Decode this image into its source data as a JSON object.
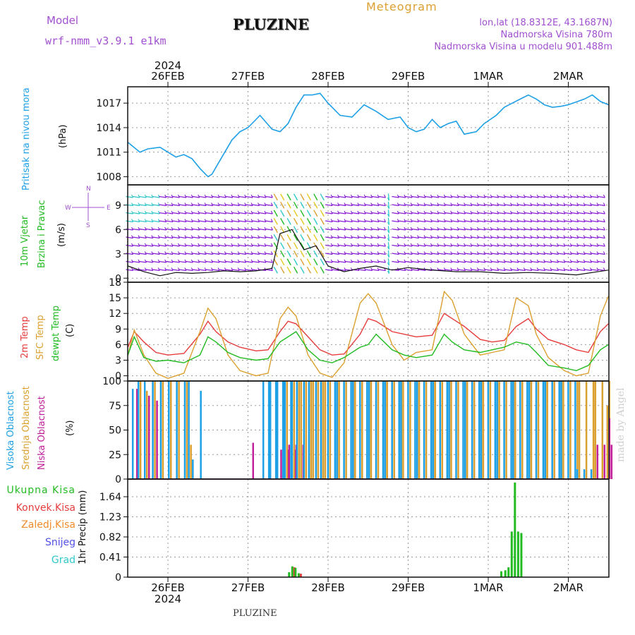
{
  "header": {
    "model_label": "Model",
    "model_name": "wrf-nmm_v3.9.1  e1km",
    "station": "PLUZINE",
    "meteogram": "Meteogram",
    "coords": "lon,lat (18.8312E, 43.1687N)",
    "altitude": "Nadmorska Visina 780m",
    "model_altitude": "Nadmorska Visina u modelu 901.488m",
    "footer_station": "PLUZINE",
    "watermark": "made by Angel"
  },
  "dates": {
    "year": "2024",
    "labels": [
      "26FEB",
      "27FEB",
      "28FEB",
      "29FEB",
      "1MAR",
      "2MAR"
    ]
  },
  "colors": {
    "pressure": "#1ea0e6",
    "temp2m": "#e63c3c",
    "sfc": "#dca030",
    "dewpt": "#22bb22",
    "high_cloud": "#1ea0e6",
    "mid_cloud": "#dca030",
    "low_cloud": "#c0209a",
    "total_precip": "#22bb22",
    "conv_precip": "#e63c3c",
    "frz_precip": "#f08c28",
    "snow": "#5050e6",
    "hail": "#30c8c8",
    "wind_purple": "#8a1fd6"
  },
  "labels": {
    "pressure": "Pritisak na nivou mora",
    "pressure_unit": "(hPa)",
    "wind1": "10m Vjetar",
    "wind2": "Brzina i Pravac",
    "wind_unit": "(m/s)",
    "compass_w": "W",
    "compass_e": "E",
    "compass_n": "N",
    "compass_s": "S",
    "temp_2m": "2m Temp",
    "temp_sfc": "SFC Temp",
    "temp_dew": "dewpt Temp",
    "temp_unit": "(C)",
    "cloud_high": "Visoka Oblacnost",
    "cloud_mid": "Srednja Oblacnost",
    "cloud_low": "Niska Oblacnost",
    "cloud_unit": "(%)",
    "precip_total": "Ukupna Kisa",
    "precip_conv": "Konvek.Kisa",
    "precip_frz": "Zaledj.Kisa",
    "precip_snow": "Snijeg",
    "precip_hail": "Grad",
    "precip_unit": "1hr Precip (mm)"
  },
  "chart_data": [
    {
      "type": "line",
      "panel": "pressure",
      "ylabel": "(hPa)",
      "yticks": [
        "1008",
        "1011",
        "1014",
        "1017"
      ],
      "ylim": [
        1007,
        1019
      ],
      "x_days": [
        -0.5,
        -0.35,
        -0.25,
        -0.1,
        0.0,
        0.1,
        0.2,
        0.3,
        0.4,
        0.5,
        0.55,
        0.65,
        0.8,
        0.9,
        1.0,
        1.15,
        1.3,
        1.4,
        1.5,
        1.6,
        1.7,
        1.8,
        1.9,
        2.0,
        2.15,
        2.3,
        2.45,
        2.6,
        2.75,
        2.9,
        3.0,
        3.1,
        3.2,
        3.3,
        3.4,
        3.5,
        3.6,
        3.7,
        3.85,
        3.95,
        4.1,
        4.2,
        4.3,
        4.4,
        4.5,
        4.6,
        4.7,
        4.8,
        4.9,
        5.0,
        5.2,
        5.3,
        5.4,
        5.5
      ],
      "series": [
        {
          "values": [
            1012.2,
            1011.0,
            1011.4,
            1011.6,
            1011.0,
            1010.4,
            1010.7,
            1010.2,
            1009.0,
            1008.0,
            1008.3,
            1010.0,
            1012.5,
            1013.5,
            1014.0,
            1015.5,
            1013.8,
            1013.5,
            1014.5,
            1016.5,
            1018.0,
            1018.0,
            1018.2,
            1017.0,
            1015.5,
            1015.3,
            1016.8,
            1016.0,
            1015.0,
            1015.3,
            1014.0,
            1013.5,
            1013.8,
            1015.0,
            1014.0,
            1014.5,
            1014.8,
            1013.2,
            1013.5,
            1014.5,
            1015.5,
            1016.5,
            1017.0,
            1017.5,
            1018.0,
            1017.5,
            1016.8,
            1016.5,
            1016.6,
            1016.8,
            1017.5,
            1018.0,
            1017.2,
            1016.8
          ]
        }
      ]
    },
    {
      "type": "line",
      "panel": "wind",
      "ylabel": "(m/s)",
      "yticks": [
        "0",
        "3",
        "6",
        "9"
      ],
      "ylim": [
        -0.5,
        11.5
      ],
      "x_days": [
        -0.5,
        -0.3,
        -0.1,
        0.1,
        0.3,
        0.5,
        0.7,
        0.9,
        1.1,
        1.3,
        1.4,
        1.55,
        1.7,
        1.85,
        2.0,
        2.2,
        2.4,
        2.6,
        2.8,
        3.0,
        3.3,
        3.6,
        3.9,
        4.2,
        4.5,
        4.8,
        5.1,
        5.5
      ],
      "series": [
        {
          "values": [
            1.5,
            0.8,
            0.3,
            0.7,
            0.6,
            0.7,
            0.9,
            0.8,
            0.9,
            1.2,
            5.5,
            6.0,
            3.5,
            4.0,
            1.5,
            0.8,
            1.2,
            1.5,
            1.0,
            1.3,
            1.0,
            0.8,
            0.8,
            0.6,
            0.7,
            0.6,
            0.4,
            1.0
          ]
        }
      ]
    },
    {
      "type": "line",
      "panel": "temperature",
      "ylabel": "(C)",
      "yticks": [
        "0",
        "3",
        "6",
        "9",
        "12",
        "15",
        "18"
      ],
      "ylim": [
        -1,
        18
      ],
      "x_days": [
        -0.5,
        -0.42,
        -0.3,
        -0.15,
        0.0,
        0.2,
        0.4,
        0.5,
        0.6,
        0.75,
        0.9,
        1.1,
        1.25,
        1.4,
        1.5,
        1.6,
        1.75,
        1.9,
        2.05,
        2.2,
        2.4,
        2.5,
        2.6,
        2.8,
        2.95,
        3.1,
        3.3,
        3.45,
        3.55,
        3.7,
        3.9,
        4.05,
        4.2,
        4.35,
        4.5,
        4.6,
        4.75,
        4.95,
        5.1,
        5.25,
        5.4,
        5.5
      ],
      "series": [
        {
          "name": "2m Temp",
          "color_key": "temp2m",
          "values": [
            5.5,
            8.5,
            6.5,
            4.5,
            4.0,
            4.3,
            8.0,
            10.5,
            8.5,
            6.5,
            5.5,
            4.8,
            5.0,
            8.5,
            10.5,
            10.0,
            7.5,
            5.0,
            4.0,
            4.2,
            8.0,
            11.0,
            10.5,
            8.5,
            8.0,
            7.5,
            7.8,
            12.0,
            11.0,
            9.5,
            7.0,
            6.5,
            6.8,
            9.5,
            11.0,
            9.0,
            7.0,
            6.0,
            5.0,
            4.5,
            8.5,
            10.0
          ]
        },
        {
          "name": "SFC Temp",
          "color_key": "sfc",
          "values": [
            4.0,
            8.8,
            4.0,
            0.5,
            -0.5,
            0.5,
            8.5,
            13.0,
            11.0,
            4.0,
            1.0,
            0.0,
            0.5,
            11.0,
            13.2,
            11.5,
            4.0,
            0.5,
            -0.3,
            2.5,
            14.0,
            15.8,
            14.0,
            6.0,
            3.0,
            4.5,
            5.0,
            16.2,
            14.5,
            8.0,
            4.0,
            4.5,
            5.0,
            15.0,
            13.5,
            8.0,
            3.5,
            1.0,
            0.0,
            0.5,
            11.5,
            15.3
          ]
        },
        {
          "name": "dewpt Temp",
          "color_key": "dewpt",
          "values": [
            4.0,
            7.5,
            3.5,
            2.8,
            3.0,
            2.5,
            4.0,
            7.5,
            6.5,
            4.5,
            3.5,
            3.0,
            3.3,
            6.5,
            7.5,
            8.5,
            5.0,
            3.0,
            2.5,
            3.5,
            5.5,
            6.0,
            8.0,
            5.0,
            4.0,
            3.5,
            4.0,
            8.0,
            6.5,
            5.0,
            4.5,
            5.0,
            5.5,
            6.5,
            6.0,
            4.5,
            2.0,
            1.5,
            1.0,
            2.0,
            5.0,
            6.0
          ]
        }
      ]
    },
    {
      "type": "bar",
      "panel": "clouds",
      "ylabel": "(%)",
      "yticks": [
        "0",
        "25",
        "50",
        "75",
        "100"
      ],
      "ylim": [
        0,
        100
      ],
      "x_days": [
        -0.45,
        -0.38,
        -0.3,
        -0.2,
        -0.1,
        0.0,
        0.1,
        0.2,
        0.25,
        0.3,
        0.4,
        1.0,
        1.18,
        1.25,
        1.35,
        1.45,
        1.6,
        1.75,
        1.9,
        2.1,
        2.3,
        2.5,
        2.7,
        2.9,
        3.1,
        3.3,
        3.5,
        3.7,
        3.9,
        4.1,
        4.3,
        4.5,
        4.7,
        4.9,
        5.1,
        5.3,
        5.45
      ],
      "series": [
        {
          "name": "Visoka Oblacnost",
          "color_key": "high_cloud",
          "values": [
            92,
            100,
            100,
            100,
            100,
            100,
            100,
            100,
            100,
            20,
            90,
            0,
            100,
            100,
            100,
            100,
            100,
            100,
            100,
            100,
            100,
            100,
            100,
            100,
            100,
            100,
            100,
            100,
            100,
            100,
            100,
            100,
            100,
            100,
            10,
            0,
            0
          ]
        },
        {
          "name": "Srednja Oblacnost",
          "color_key": "mid_cloud",
          "values": [
            0,
            100,
            90,
            100,
            100,
            100,
            100,
            100,
            35,
            0,
            0,
            0,
            0,
            0,
            0,
            100,
            100,
            100,
            100,
            100,
            100,
            100,
            100,
            100,
            100,
            100,
            100,
            100,
            100,
            100,
            100,
            100,
            100,
            100,
            100,
            100,
            75
          ]
        },
        {
          "name": "Niska Oblacnost",
          "color_key": "low_cloud",
          "values": [
            92,
            0,
            85,
            80,
            0,
            0,
            0,
            0,
            0,
            0,
            0,
            37,
            0,
            0,
            30,
            35,
            0,
            0,
            0,
            0,
            0,
            0,
            0,
            0,
            0,
            0,
            0,
            0,
            0,
            0,
            0,
            0,
            0,
            0,
            0,
            35,
            62
          ]
        }
      ]
    },
    {
      "type": "bar",
      "panel": "precip",
      "ylabel": "1hr Precip (mm)",
      "yticks": [
        "0",
        "0.41",
        "0.82",
        "1.23",
        "1.64"
      ],
      "ylim": [
        0,
        2.0
      ],
      "x_days": [
        1.5,
        1.54,
        1.58,
        1.62,
        4.15,
        4.2,
        4.24,
        4.28,
        4.32,
        4.36,
        4.4
      ],
      "series": [
        {
          "name": "Ukupna Kisa",
          "color_key": "total_precip",
          "values": [
            0.1,
            0.22,
            0.19,
            0.08,
            0.12,
            0.14,
            0.2,
            0.93,
            1.93,
            0.93,
            0.9
          ]
        },
        {
          "name": "Konvek.Kisa",
          "color_key": "conv_precip",
          "values": [
            0.0,
            0.2,
            0.0,
            0.07,
            0,
            0,
            0,
            0,
            0,
            0,
            0
          ]
        }
      ]
    }
  ]
}
